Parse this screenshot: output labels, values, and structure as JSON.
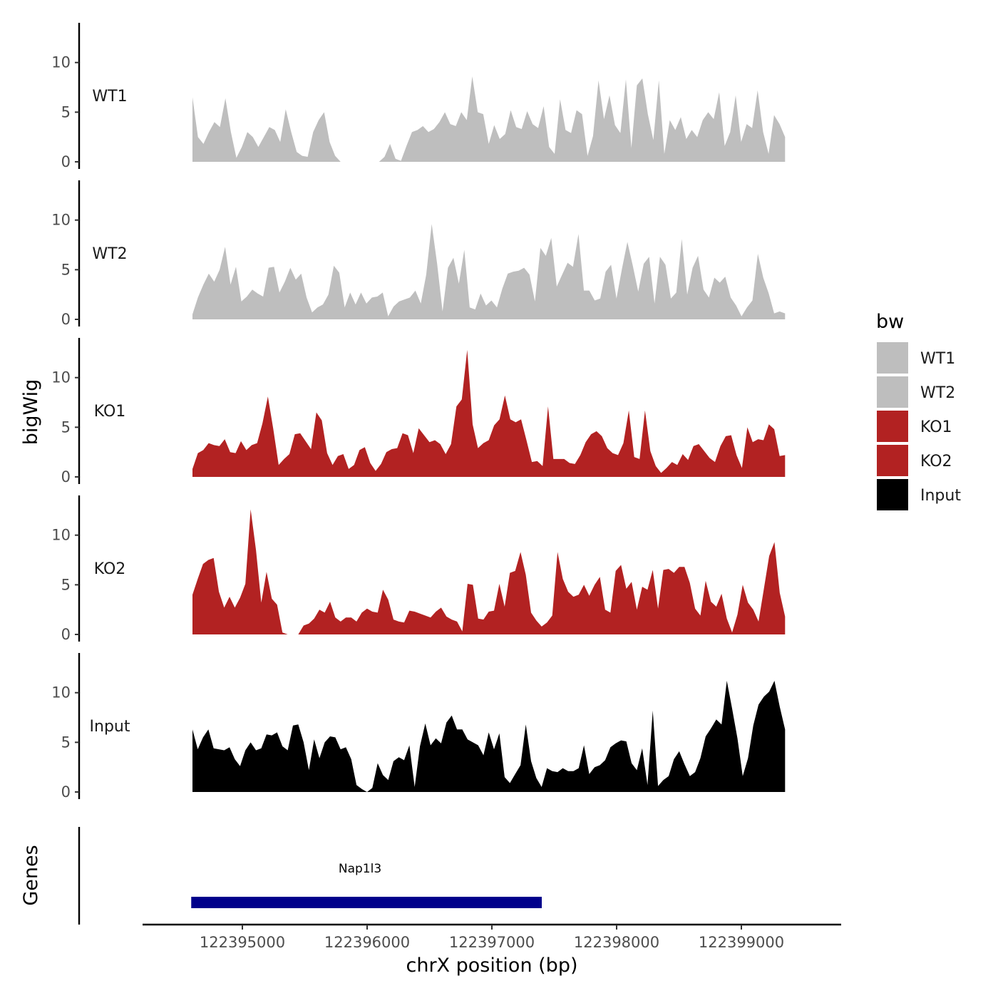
{
  "chart_data": {
    "type": "area",
    "y_axis_title": "bigWig",
    "x_axis_title": "chrX position (bp)",
    "genes_axis_title": "Genes",
    "x_range": [
      122394600,
      122399350
    ],
    "x_axis_limits": [
      122394200,
      122399800
    ],
    "x_ticks": [
      122395000,
      122396000,
      122397000,
      122398000,
      122399000
    ],
    "x_tick_labels": [
      "122395000",
      "122396000",
      "122397000",
      "122398000",
      "122399000"
    ],
    "y_range": [
      0,
      14
    ],
    "y_ticks": [
      0,
      5,
      10
    ],
    "y_tick_labels": [
      "0",
      "5",
      "10"
    ],
    "legend": {
      "title": "bw",
      "entries": [
        {
          "label": "WT1",
          "color": "#bebebe"
        },
        {
          "label": "WT2",
          "color": "#bebebe"
        },
        {
          "label": "KO1",
          "color": "#b22222"
        },
        {
          "label": "KO2",
          "color": "#b22222"
        },
        {
          "label": "Input",
          "color": "#000000"
        }
      ]
    },
    "series": [
      {
        "name": "WT1",
        "color": "#bebebe",
        "values": [
          6.5,
          2.5,
          1.8,
          3,
          4,
          3.5,
          6.4,
          3,
          0.4,
          1.5,
          3,
          2.5,
          1.5,
          2.5,
          3.5,
          3.2,
          2,
          5.3,
          3,
          1,
          0.6,
          0.5,
          3,
          4.2,
          5,
          2,
          0.6,
          0,
          0,
          0,
          0,
          0,
          0,
          0,
          0,
          0.5,
          1.8,
          0.3,
          0.1,
          1.6,
          3,
          3.2,
          3.6,
          3,
          3.3,
          4,
          5,
          3.8,
          3.6,
          5,
          4.2,
          8.6,
          5,
          4.8,
          1.8,
          3.7,
          2.3,
          2.8,
          5.2,
          3.5,
          3.3,
          5.1,
          3.8,
          3.4,
          5.6,
          1.5,
          0.8,
          6.3,
          3.2,
          2.9,
          5.2,
          4.8,
          0.6,
          2.6,
          8.2,
          4.3,
          6.7,
          3.7,
          2.9,
          8.3,
          1.4,
          7.7,
          8.4,
          4.8,
          2.2,
          8.2,
          0.8,
          4.2,
          3.2,
          4.5,
          2.3,
          3.2,
          2.5,
          4.2,
          5,
          4.3,
          7,
          1.6,
          3,
          6.7,
          2,
          3.8,
          3.4,
          7.2,
          3,
          0.8,
          4.7,
          3.8,
          2.5
        ]
      },
      {
        "name": "WT2",
        "color": "#bebebe",
        "values": [
          0.5,
          2.2,
          3.5,
          4.6,
          3.8,
          5,
          7.3,
          3.5,
          5.3,
          1.8,
          2.3,
          3,
          2.6,
          2.3,
          5.2,
          5.3,
          2.7,
          3.8,
          5.2,
          4,
          4.6,
          2.2,
          0.7,
          1.2,
          1.5,
          2.5,
          5.4,
          4.7,
          1.2,
          2.7,
          1.5,
          2.7,
          1.6,
          2.2,
          2.3,
          2.7,
          0.3,
          1.3,
          1.8,
          2,
          2.2,
          2.9,
          1.6,
          4.5,
          9.6,
          5.6,
          0.8,
          5.2,
          6.2,
          3.6,
          7,
          1.2,
          1,
          2.6,
          1.4,
          1.9,
          1.2,
          3.1,
          4.6,
          4.8,
          4.9,
          5.2,
          4.5,
          1.8,
          7.2,
          6.4,
          8.2,
          3.3,
          4.5,
          5.7,
          5.3,
          8.6,
          2.9,
          2.9,
          1.9,
          2.1,
          4.8,
          5.5,
          2.1,
          5.1,
          7.8,
          5.4,
          2.8,
          5.6,
          6.3,
          1.6,
          6.3,
          5.5,
          2.1,
          2.7,
          8.1,
          2.5,
          5.2,
          6.4,
          3,
          2.2,
          4.2,
          3.7,
          4.3,
          2.2,
          1.4,
          0.3,
          1.2,
          1.9,
          6.6,
          4.2,
          2.6,
          0.6,
          0.8,
          0.6
        ]
      },
      {
        "name": "KO1",
        "color": "#b22222",
        "values": [
          0.8,
          2.4,
          2.7,
          3.4,
          3.2,
          3.1,
          3.8,
          2.5,
          2.4,
          3.6,
          2.7,
          3.2,
          3.4,
          5.4,
          8.1,
          4.8,
          1.2,
          1.8,
          2.3,
          4.3,
          4.4,
          3.6,
          2.8,
          6.5,
          5.7,
          2.4,
          1.2,
          2.1,
          2.3,
          0.8,
          1.2,
          2.7,
          3,
          1.4,
          0.6,
          1.3,
          2.5,
          2.8,
          2.9,
          4.4,
          4.2,
          2.4,
          4.9,
          4.2,
          3.5,
          3.7,
          3.3,
          2.3,
          3.3,
          7.1,
          7.8,
          12.8,
          5.3,
          2.9,
          3.4,
          3.7,
          5.2,
          5.8,
          8.2,
          5.8,
          5.5,
          5.8,
          3.7,
          1.5,
          1.6,
          1.1,
          7.1,
          1.8,
          1.8,
          1.8,
          1.4,
          1.3,
          2.2,
          3.5,
          4.3,
          4.6,
          4.1,
          2.9,
          2.4,
          2.2,
          3.4,
          6.7,
          2,
          1.8,
          6.7,
          2.6,
          1.1,
          0.4,
          0.9,
          1.5,
          1.2,
          2.3,
          1.7,
          3.1,
          3.3,
          2.6,
          1.9,
          1.5,
          3.1,
          4.1,
          4.2,
          2.2,
          0.9,
          5,
          3.5,
          3.8,
          3.7,
          5.3,
          4.8,
          2.1,
          2.2
        ]
      },
      {
        "name": "KO2",
        "color": "#b22222",
        "values": [
          4,
          5.6,
          7.1,
          7.5,
          7.7,
          4.3,
          2.7,
          3.8,
          2.7,
          3.7,
          5.1,
          12.6,
          8.5,
          3.2,
          6.3,
          3.6,
          3,
          0.2,
          0,
          0,
          0,
          0.9,
          1.1,
          1.6,
          2.5,
          2.2,
          3.3,
          1.7,
          1.3,
          1.7,
          1.7,
          1.3,
          2.2,
          2.6,
          2.3,
          2.2,
          4.5,
          3.5,
          1.5,
          1.3,
          1.2,
          2.4,
          2.3,
          2.1,
          1.9,
          1.7,
          2.3,
          2.7,
          1.8,
          1.5,
          1.3,
          0.3,
          5.1,
          5,
          1.6,
          1.5,
          2.3,
          2.4,
          5.1,
          2.8,
          6.2,
          6.4,
          8.3,
          6,
          2.2,
          1.4,
          0.8,
          1.2,
          1.9,
          8.3,
          5.6,
          4.3,
          3.8,
          4,
          5,
          3.9,
          5,
          5.8,
          2.5,
          2.2,
          6.4,
          7,
          4.6,
          5.3,
          2.5,
          4.8,
          4.5,
          6.5,
          2.6,
          6.5,
          6.6,
          6.2,
          6.8,
          6.8,
          5.2,
          2.6,
          1.9,
          5.4,
          3.3,
          2.8,
          4.1,
          1.6,
          0.2,
          2,
          5,
          3.2,
          2.5,
          1.3,
          4.6,
          7.9,
          9.3,
          4.2,
          1.8
        ]
      },
      {
        "name": "Input",
        "color": "#000000",
        "values": [
          6.3,
          4.3,
          5.5,
          6.3,
          4.4,
          4.3,
          4.2,
          4.5,
          3.3,
          2.6,
          4.2,
          5,
          4.2,
          4.4,
          5.8,
          5.7,
          6,
          4.6,
          4.2,
          6.7,
          6.8,
          5,
          2.2,
          5.3,
          3.4,
          5,
          5.6,
          5.5,
          4.3,
          4.5,
          3.3,
          0.7,
          0.3,
          0,
          0.4,
          2.9,
          1.7,
          1.2,
          3.1,
          3.5,
          3.2,
          4.7,
          0.5,
          4.6,
          6.9,
          4.7,
          5.4,
          4.9,
          7,
          7.7,
          6.3,
          6.3,
          5.3,
          5,
          4.7,
          3.7,
          6,
          4.3,
          5.9,
          1.5,
          0.9,
          1.8,
          2.7,
          6.8,
          3.1,
          1.4,
          0.5,
          2.4,
          2.1,
          2,
          2.4,
          2.1,
          2.1,
          2.4,
          4.7,
          1.8,
          2.5,
          2.7,
          3.2,
          4.5,
          4.9,
          5.2,
          5.1,
          2.9,
          2.2,
          4.4,
          0.7,
          8.2,
          0.6,
          1.2,
          1.6,
          3.3,
          4.1,
          2.8,
          1.6,
          2,
          3.4,
          5.6,
          6.4,
          7.3,
          6.8,
          11.2,
          8.4,
          5.4,
          1.6,
          3.4,
          6.7,
          8.8,
          9.6,
          10.1,
          11.2,
          8.6,
          6.3
        ]
      }
    ],
    "genes": [
      {
        "name": "Nap1l3",
        "start": 122394590,
        "end": 122397400,
        "color": "#00008b"
      }
    ]
  }
}
